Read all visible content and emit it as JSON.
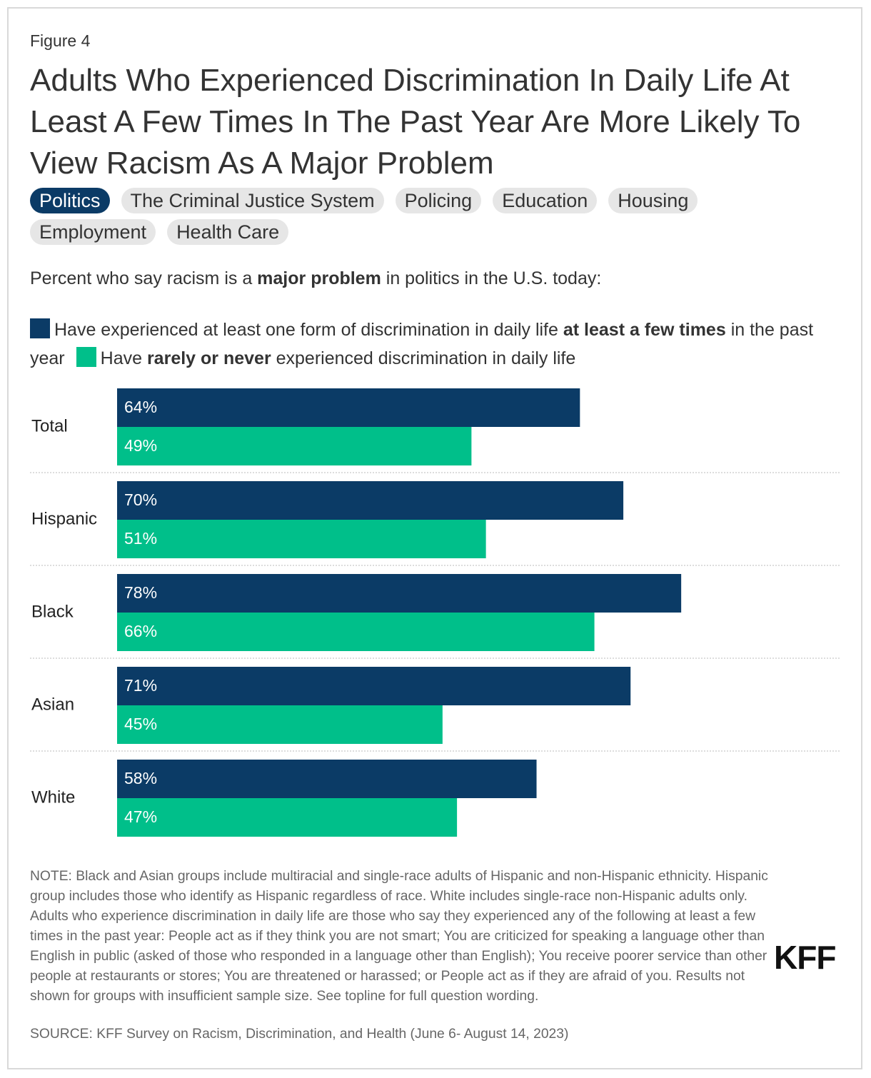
{
  "figure_label": "Figure 4",
  "title": "Adults Who Experienced Discrimination In Daily Life At Least A Few Times In The Past Year Are More Likely To View Racism As A Major Problem",
  "tabs": [
    "Politics",
    "The Criminal Justice System",
    "Policing",
    "Education",
    "Housing",
    "Employment",
    "Health Care"
  ],
  "active_tab": 0,
  "chart_data": {
    "type": "hbar",
    "subtitle": "Percent who say racism is a major problem in politics in the U.S. today:",
    "subtitle_bold": "major problem",
    "categories": [
      "Total",
      "Hispanic",
      "Black",
      "Asian",
      "White"
    ],
    "series": [
      {
        "name": "Have experienced at least one form of discrimination in daily life at least a few times in the past year",
        "name_bold": "at least a few times",
        "color": "#0b3b66",
        "values": [
          64,
          70,
          78,
          71,
          58
        ],
        "value_labels": [
          "64%",
          "70%",
          "78%",
          "71%",
          "58%"
        ]
      },
      {
        "name": "Have rarely or never experienced discrimination in daily life",
        "name_bold": "rarely or never",
        "color": "#00bf8a",
        "values": [
          49,
          51,
          66,
          45,
          47
        ],
        "value_labels": [
          "49%",
          "51%",
          "66%",
          "45%",
          "47%"
        ]
      }
    ],
    "xlim": [
      0,
      100
    ]
  },
  "notes": "NOTE: Black and Asian groups include multiracial and single-race adults of Hispanic and non-Hispanic ethnicity. Hispanic group includes those who identify as Hispanic regardless of race. White includes single-race non-Hispanic adults only. Adults who experience discrimination in daily life are those who say they experienced any of the following at least a few times in the past year: People act as if they think you are not smart; You are criticized for speaking a language other than English in public (asked of those who responded in a language other than English); You receive poorer service than other people at restaurants or stores; You are threatened or harassed; or People act as if they are afraid of you. Results not shown for groups with insufficient sample size. See topline for full question wording.",
  "source": "SOURCE: KFF Survey on Racism, Discrimination, and Health (June 6- August 14, 2023)",
  "logo": "KFF"
}
